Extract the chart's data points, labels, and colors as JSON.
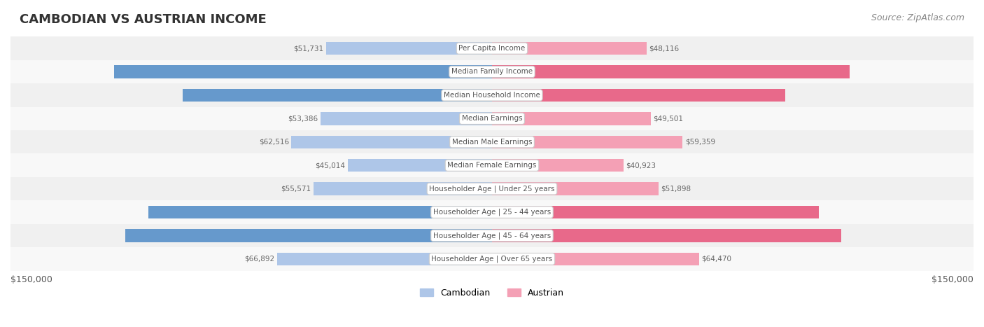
{
  "title": "CAMBODIAN VS AUSTRIAN INCOME",
  "source": "Source: ZipAtlas.com",
  "max_value": 150000,
  "categories": [
    "Per Capita Income",
    "Median Family Income",
    "Median Household Income",
    "Median Earnings",
    "Median Male Earnings",
    "Median Female Earnings",
    "Householder Age | Under 25 years",
    "Householder Age | 25 - 44 years",
    "Householder Age | 45 - 64 years",
    "Householder Age | Over 65 years"
  ],
  "cambodian_values": [
    51731,
    117780,
    96324,
    53386,
    62516,
    45014,
    55571,
    107148,
    114342,
    66892
  ],
  "austrian_values": [
    48116,
    111306,
    91339,
    49501,
    59359,
    40923,
    51898,
    101842,
    108692,
    64470
  ],
  "cambodian_color_light": "#aec6e8",
  "cambodian_color_dark": "#6699cc",
  "austrian_color_light": "#f4a0b5",
  "austrian_color_dark": "#e8698a",
  "label_color_light": "#888888",
  "label_color_dark": "#ffffff",
  "bg_row_color": "#f0f0f0",
  "center_label_bg": "#ffffff",
  "center_label_color": "#555555",
  "bar_height": 0.55,
  "legend_cambodian": "Cambodian",
  "legend_austrian": "Austrian",
  "xlabel_left": "$150,000",
  "xlabel_right": "$150,000"
}
